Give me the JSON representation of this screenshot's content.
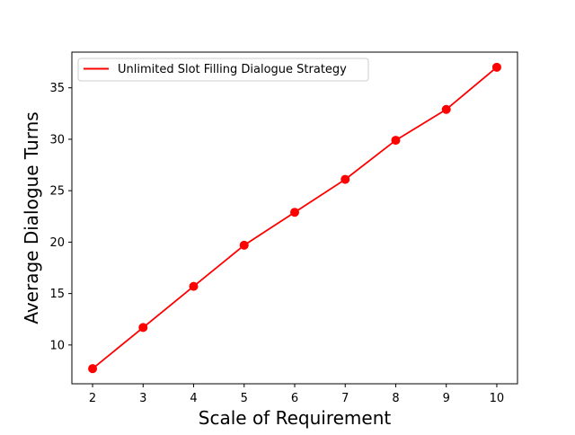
{
  "chart_data": {
    "type": "line",
    "title": "",
    "xlabel": "Scale of Requirement",
    "ylabel": "Average Dialogue Turns",
    "x": [
      2,
      3,
      4,
      5,
      6,
      7,
      8,
      9,
      10
    ],
    "series": [
      {
        "name": "Unlimited Slot Filling Dialogue Strategy",
        "values": [
          7.7,
          11.7,
          15.7,
          19.7,
          22.9,
          26.1,
          29.9,
          32.9,
          37.0
        ],
        "color": "#ff0000",
        "marker": "circle"
      }
    ],
    "xlim": [
      1.59,
      10.41
    ],
    "ylim": [
      6.23,
      38.47
    ],
    "xticks": [
      2,
      3,
      4,
      5,
      6,
      7,
      8,
      9,
      10
    ],
    "yticks": [
      10,
      15,
      20,
      25,
      30,
      35
    ],
    "grid": false,
    "legend_position": "upper-left"
  }
}
